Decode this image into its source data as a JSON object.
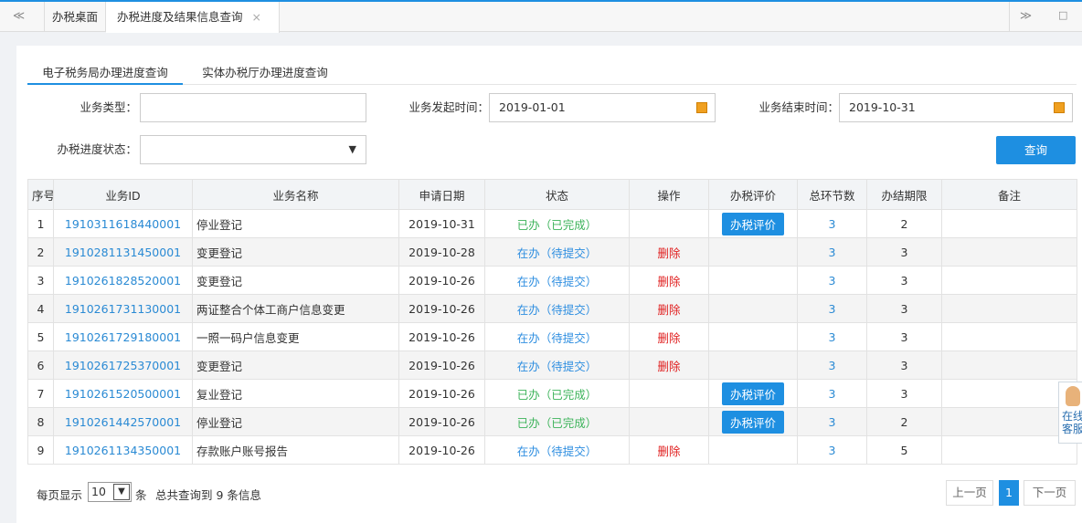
{
  "tabs": {
    "nav_left": "≪",
    "home": "办税桌面",
    "active": "办税进度及结果信息查询",
    "close": "×",
    "nav_right": "≫",
    "window": "□"
  },
  "subtabs": [
    "电子税务局办理进度查询",
    "实体办税厅办理进度查询"
  ],
  "form": {
    "business_type": {
      "label": "业务类型："
    },
    "start_time": {
      "label": "业务发起时间：",
      "value": "2019-01-01"
    },
    "end_time": {
      "label": "业务结束时间：",
      "value": "2019-10-31"
    },
    "status": {
      "label": "办税进度状态："
    },
    "query_button": "查询"
  },
  "table": {
    "columns": [
      "序号",
      "业务ID",
      "业务名称",
      "申请日期",
      "状态",
      "操作",
      "办税评价",
      "总环节数",
      "办结期限",
      "备注"
    ],
    "rows": [
      {
        "seq": 1,
        "id": "1910311618440001",
        "name": "停业登记",
        "date": "2019-10-31",
        "status": "已办（已完成）",
        "rating": "办税评价",
        "steps": 3,
        "deadline": 2
      },
      {
        "seq": 2,
        "id": "1910281131450001",
        "name": "变更登记",
        "date": "2019-10-28",
        "status": "在办（待提交）",
        "action": "删除",
        "steps": 3,
        "deadline": 3
      },
      {
        "seq": 3,
        "id": "1910261828520001",
        "name": "变更登记",
        "date": "2019-10-26",
        "status": "在办（待提交）",
        "action": "删除",
        "steps": 3,
        "deadline": 3
      },
      {
        "seq": 4,
        "id": "1910261731130001",
        "name": "两证整合个体工商户信息变更",
        "date": "2019-10-26",
        "status": "在办（待提交）",
        "action": "删除",
        "steps": 3,
        "deadline": 3
      },
      {
        "seq": 5,
        "id": "1910261729180001",
        "name": "一照一码户信息变更",
        "date": "2019-10-26",
        "status": "在办（待提交）",
        "action": "删除",
        "steps": 3,
        "deadline": 3
      },
      {
        "seq": 6,
        "id": "1910261725370001",
        "name": "变更登记",
        "date": "2019-10-26",
        "status": "在办（待提交）",
        "action": "删除",
        "steps": 3,
        "deadline": 3
      },
      {
        "seq": 7,
        "id": "1910261520500001",
        "name": "复业登记",
        "date": "2019-10-26",
        "status": "已办（已完成）",
        "rating": "办税评价",
        "steps": 3,
        "deadline": 3
      },
      {
        "seq": 8,
        "id": "1910261442570001",
        "name": "停业登记",
        "date": "2019-10-26",
        "status": "已办（已完成）",
        "rating": "办税评价",
        "steps": 3,
        "deadline": 2
      },
      {
        "seq": 9,
        "id": "1910261134350001",
        "name": "存款账户账号报告",
        "date": "2019-10-26",
        "status": "在办（待提交）",
        "action": "删除",
        "steps": 3,
        "deadline": 5
      }
    ]
  },
  "footer": {
    "per_page_label": "每页显示",
    "per_page": "10",
    "unit": "条",
    "total": "总共查询到 9 条信息"
  },
  "pagination": {
    "prev": "上一页",
    "current": "1",
    "next": "下一页"
  },
  "service_widget": [
    "在线",
    "客服"
  ]
}
